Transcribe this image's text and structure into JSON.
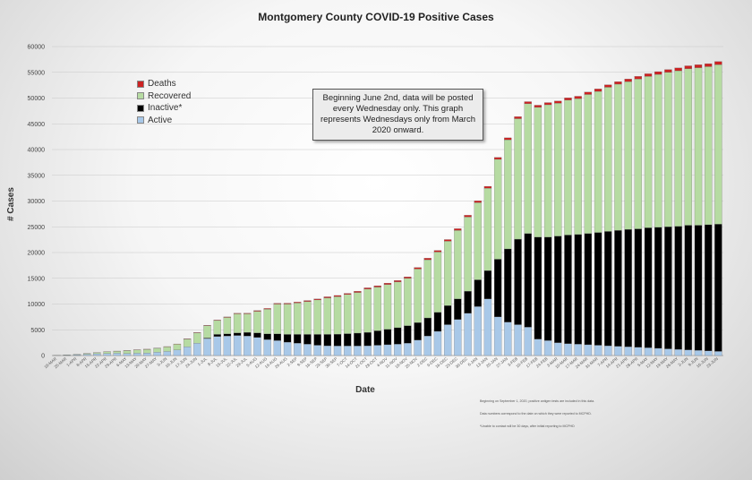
{
  "chart_data": {
    "type": "bar",
    "stacked": true,
    "title": "Montgomery County COVID-19 Positive Cases",
    "xlabel": "Date",
    "ylabel": "# Cases",
    "ylim": [
      0,
      60000
    ],
    "yticks": [
      0,
      5000,
      10000,
      15000,
      20000,
      25000,
      30000,
      35000,
      40000,
      45000,
      50000,
      55000,
      60000
    ],
    "grid": "horizontal",
    "legend_position": "top-left",
    "categories": [
      "18-MAR",
      "25-MAR",
      "1-APR",
      "8-APR",
      "15-APR",
      "22-APR",
      "29-APR",
      "6-MAY",
      "13-MAY",
      "20-MAY",
      "27-MAY",
      "3-JUN",
      "10-JUN",
      "17-JUN",
      "24-JUN",
      "1-JUL",
      "8-JUL",
      "15-JUL",
      "22-JUL",
      "29-JUL",
      "5-AUG",
      "12-AUG",
      "19-AUG",
      "26-AUG",
      "2-SEP",
      "9-SEP",
      "16-SEP",
      "23-SEP",
      "30-SEP",
      "7-OCT",
      "14-OCT",
      "21-OCT",
      "28-OCT",
      "4-NOV",
      "11-NOV",
      "18-NOV",
      "25-NOV",
      "2-DEC",
      "9-DEC",
      "16-DEC",
      "23-DEC",
      "30-DEC",
      "6-JAN",
      "13-JAN",
      "20-JAN",
      "27-JAN",
      "3-FEB",
      "10-FEB",
      "17-FEB",
      "24-FEB",
      "3-MAR",
      "10-MAR",
      "17-MAR",
      "24-MAR",
      "31-MAR",
      "7-APR",
      "14-APR",
      "21-APR",
      "28-APR",
      "5-MAY",
      "12-MAY",
      "19-MAY",
      "26-MAY",
      "2-JUN",
      "9-JUN",
      "16-JUN",
      "23-JUN"
    ],
    "series": [
      {
        "name": "Active",
        "color": "#a8c8e8",
        "values": [
          30,
          80,
          150,
          250,
          350,
          400,
          450,
          400,
          450,
          500,
          650,
          800,
          1100,
          1700,
          2400,
          3300,
          3700,
          3800,
          3900,
          3800,
          3500,
          3100,
          2900,
          2600,
          2400,
          2200,
          2000,
          1900,
          1850,
          1850,
          1850,
          1900,
          2000,
          2100,
          2200,
          2400,
          3000,
          3800,
          4700,
          6000,
          7000,
          8200,
          9500,
          11000,
          7500,
          6500,
          6000,
          5500,
          3200,
          2900,
          2500,
          2300,
          2200,
          2100,
          2000,
          1900,
          1800,
          1700,
          1600,
          1500,
          1400,
          1300,
          1200,
          1100,
          1000,
          900,
          800
        ]
      },
      {
        "name": "Inactive*",
        "color": "#000000",
        "values": [
          0,
          0,
          0,
          0,
          0,
          0,
          0,
          0,
          0,
          0,
          0,
          0,
          0,
          0,
          0,
          100,
          400,
          400,
          500,
          700,
          900,
          1100,
          1300,
          1500,
          1700,
          1900,
          2100,
          2200,
          2300,
          2400,
          2500,
          2600,
          2800,
          3000,
          3200,
          3400,
          3400,
          3500,
          3700,
          3700,
          4000,
          4300,
          5200,
          5500,
          11200,
          14200,
          16600,
          18200,
          19800,
          20100,
          20700,
          21100,
          21300,
          21600,
          21900,
          22200,
          22500,
          22800,
          23000,
          23300,
          23500,
          23700,
          23900,
          24200,
          24300,
          24500,
          24700
        ]
      },
      {
        "name": "Recovered",
        "color": "#b6dba2",
        "values": [
          10,
          40,
          80,
          150,
          200,
          350,
          400,
          550,
          650,
          700,
          750,
          900,
          1100,
          1500,
          2000,
          2400,
          2700,
          3200,
          3700,
          3600,
          4200,
          4800,
          5800,
          5900,
          6100,
          6400,
          6700,
          7100,
          7300,
          7600,
          7900,
          8400,
          8500,
          8700,
          8900,
          9200,
          10400,
          11300,
          11700,
          12500,
          13300,
          14400,
          15000,
          16000,
          19400,
          21200,
          23400,
          25200,
          25200,
          25700,
          25800,
          26200,
          26400,
          27000,
          27400,
          28000,
          28400,
          28700,
          29100,
          29400,
          29700,
          30000,
          30200,
          30400,
          30600,
          30700,
          31000
        ]
      },
      {
        "name": "Deaths",
        "color": "#cc2222",
        "values": [
          0,
          0,
          2,
          5,
          10,
          15,
          20,
          25,
          30,
          35,
          40,
          45,
          50,
          60,
          70,
          80,
          90,
          100,
          110,
          120,
          130,
          140,
          150,
          160,
          170,
          180,
          190,
          200,
          210,
          220,
          230,
          240,
          250,
          260,
          270,
          280,
          290,
          300,
          310,
          320,
          330,
          340,
          350,
          360,
          370,
          380,
          390,
          400,
          410,
          420,
          430,
          440,
          450,
          460,
          470,
          480,
          490,
          500,
          510,
          520,
          530,
          540,
          550,
          560,
          570,
          580,
          600
        ]
      }
    ]
  },
  "legend": {
    "items": [
      {
        "label": "Deaths",
        "color": "#cc2222"
      },
      {
        "label": "Recovered",
        "color": "#b6dba2"
      },
      {
        "label": "Inactive*",
        "color": "#000000"
      },
      {
        "label": "Active",
        "color": "#a8c8e8"
      }
    ]
  },
  "annotation": "Beginning June 2nd, data will be posted every Wednesday only. This graph represents Wednesdays only from March 2020 onward.",
  "footnotes": [
    "Beginning on September 1, 2020, positive antigen tests are included in this data.",
    "Data numbers correspond to the date on which they were reported to MCPHD.",
    "*Unable to contact will be 30 days, after initial reporting to MCPHD"
  ]
}
